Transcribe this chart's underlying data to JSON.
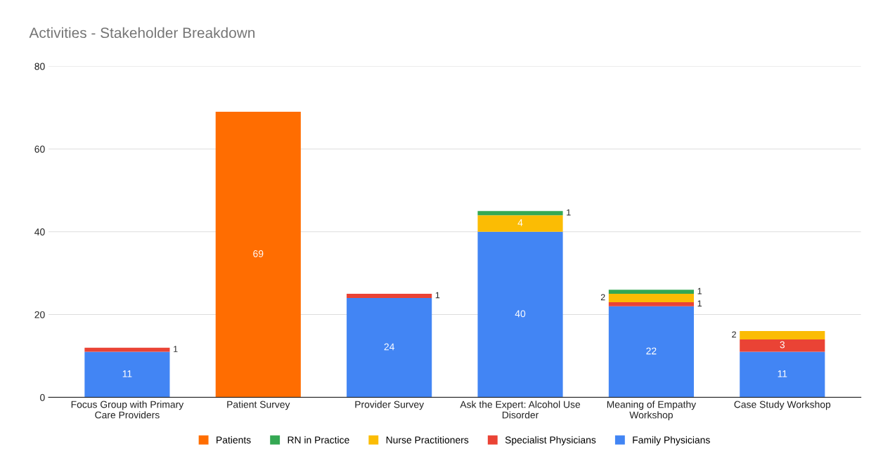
{
  "chart_data": {
    "type": "bar",
    "title": "Activities - Stakeholder Breakdown",
    "stacked": true,
    "categories": [
      "Focus Group with Primary\nCare Providers",
      "Patient Survey",
      "Provider Survey",
      "Ask the Expert: Alcohol Use\nDisorder",
      "Meaning of Empathy\nWorkshop",
      "Case Study Workshop"
    ],
    "series": [
      {
        "name": "Family Physicians",
        "color": "#4285f4",
        "values": [
          11,
          null,
          24,
          40,
          22,
          11
        ]
      },
      {
        "name": "Specialist Physicians",
        "color": "#ea4335",
        "values": [
          1,
          null,
          1,
          null,
          1,
          3
        ]
      },
      {
        "name": "Nurse Practitioners",
        "color": "#fbbc04",
        "values": [
          null,
          null,
          null,
          4,
          2,
          2
        ]
      },
      {
        "name": "RN in Practice",
        "color": "#34a853",
        "values": [
          null,
          null,
          null,
          1,
          1,
          null
        ]
      },
      {
        "name": "Patients",
        "color": "#ff6d01",
        "values": [
          null,
          69,
          null,
          null,
          null,
          null
        ]
      }
    ],
    "ylim": [
      0,
      80
    ],
    "yticks": [
      0,
      20,
      40,
      60,
      80
    ],
    "grid": "y",
    "legend": "bottom",
    "data_labels": true
  }
}
